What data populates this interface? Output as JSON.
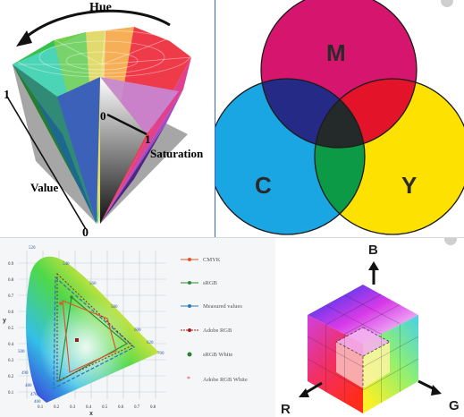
{
  "hsv_cone": {
    "hue_label": "Hue",
    "saturation_label": "Saturation",
    "value_label": "Value",
    "value_top": "1",
    "value_bottom": "0",
    "sat_zero": "0",
    "sat_one": "1"
  },
  "cmy_venn": {
    "m_label": "M",
    "c_label": "C",
    "y_label": "Y",
    "colors": {
      "magenta": "#d6156f",
      "cyan": "#19a6e2",
      "yellow": "#fde100",
      "blue": "#252a87",
      "red": "#e3142a",
      "green": "#0c9a46",
      "black": "#242a2a"
    }
  },
  "gamut_chart": {
    "axis_x": "x",
    "axis_y": "y",
    "y_ticks": [
      "0.9",
      "0.8",
      "0.7",
      "0.6",
      "0.5",
      "0.4",
      "0.3",
      "0.2",
      "0.1"
    ],
    "x_ticks": [
      "0.1",
      "0.2",
      "0.3",
      "0.4",
      "0.5",
      "0.6",
      "0.7",
      "0.8"
    ],
    "wavelengths": [
      "520",
      "540",
      "560",
      "580",
      "600",
      "620",
      "700",
      "500",
      "490",
      "480",
      "470",
      "460"
    ],
    "legend": [
      {
        "label": "CMYK",
        "color": "#e0562a"
      },
      {
        "label": "sRGB",
        "color": "#2f8a3c"
      },
      {
        "label": "Measured values",
        "color": "#2a78b8"
      },
      {
        "label": "Adobe RGB",
        "color": "#a51a1a"
      },
      {
        "label": "sRGB White",
        "color": "#2e7d32"
      },
      {
        "label": "Adobe RGB White",
        "color": "#e53935"
      }
    ]
  },
  "rgb_cube": {
    "b_label": "B",
    "r_label": "R",
    "g_label": "G"
  }
}
